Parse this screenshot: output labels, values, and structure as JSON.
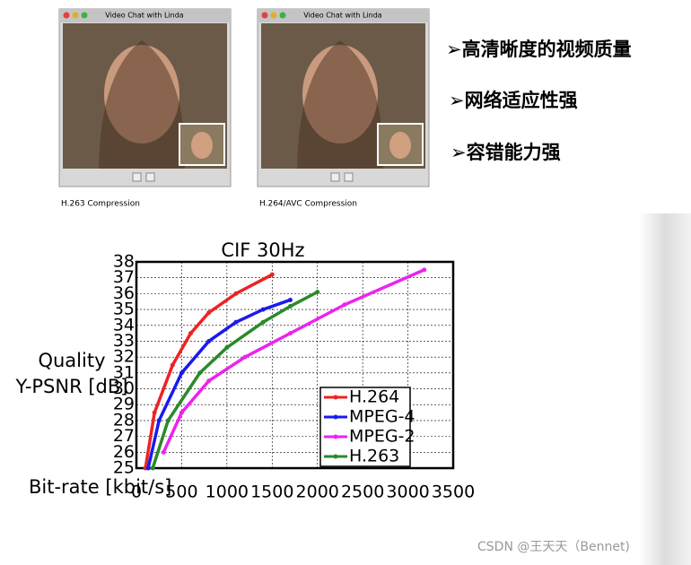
{
  "slide": {
    "windows": [
      {
        "title": "Video Chat with Linda",
        "caption": "H.263 Compression"
      },
      {
        "title": "Video Chat with Linda",
        "caption": "H.264/AVC Compression"
      }
    ],
    "bullets": [
      "➢高清晰度的视频质量",
      "➢网络适应性强",
      "➢容错能力强"
    ],
    "watermark": "CSDN @王天天（Bennet)"
  },
  "chart_data": {
    "type": "line",
    "title": "CIF 30Hz",
    "y_label_lines": [
      "Quality",
      "Y-PSNR [dB]"
    ],
    "x_label": "Bit-rate [kbit/s]",
    "xlim": [
      0,
      3500
    ],
    "xticks": [
      0,
      500,
      1000,
      1500,
      2000,
      2500,
      3000,
      3500
    ],
    "ylim": [
      25,
      38
    ],
    "yticks": [
      25,
      26,
      27,
      28,
      29,
      30,
      31,
      32,
      33,
      34,
      35,
      36,
      37,
      38
    ],
    "grid": true,
    "legend": "lower right",
    "series": [
      {
        "name": "H.264",
        "color": "#ee2222",
        "x": [
          100,
          200,
          400,
          600,
          800,
          1100,
          1500
        ],
        "values": [
          25,
          28.5,
          31.5,
          33.5,
          34.8,
          36,
          37.2
        ]
      },
      {
        "name": "MPEG-4",
        "color": "#1a1aee",
        "x": [
          130,
          250,
          500,
          800,
          1100,
          1400,
          1700
        ],
        "values": [
          25,
          28,
          31,
          33,
          34.2,
          35,
          35.6
        ]
      },
      {
        "name": "MPEG-2",
        "color": "#ee22ee",
        "x": [
          300,
          500,
          800,
          1200,
          1700,
          2300,
          3180
        ],
        "values": [
          26,
          28.5,
          30.5,
          32,
          33.5,
          35.3,
          37.5
        ]
      },
      {
        "name": "H.263",
        "color": "#2a8a2a",
        "x": [
          180,
          350,
          700,
          1000,
          1400,
          1700,
          2000
        ],
        "values": [
          25,
          28,
          31,
          32.6,
          34.2,
          35.2,
          36.1
        ]
      }
    ]
  }
}
